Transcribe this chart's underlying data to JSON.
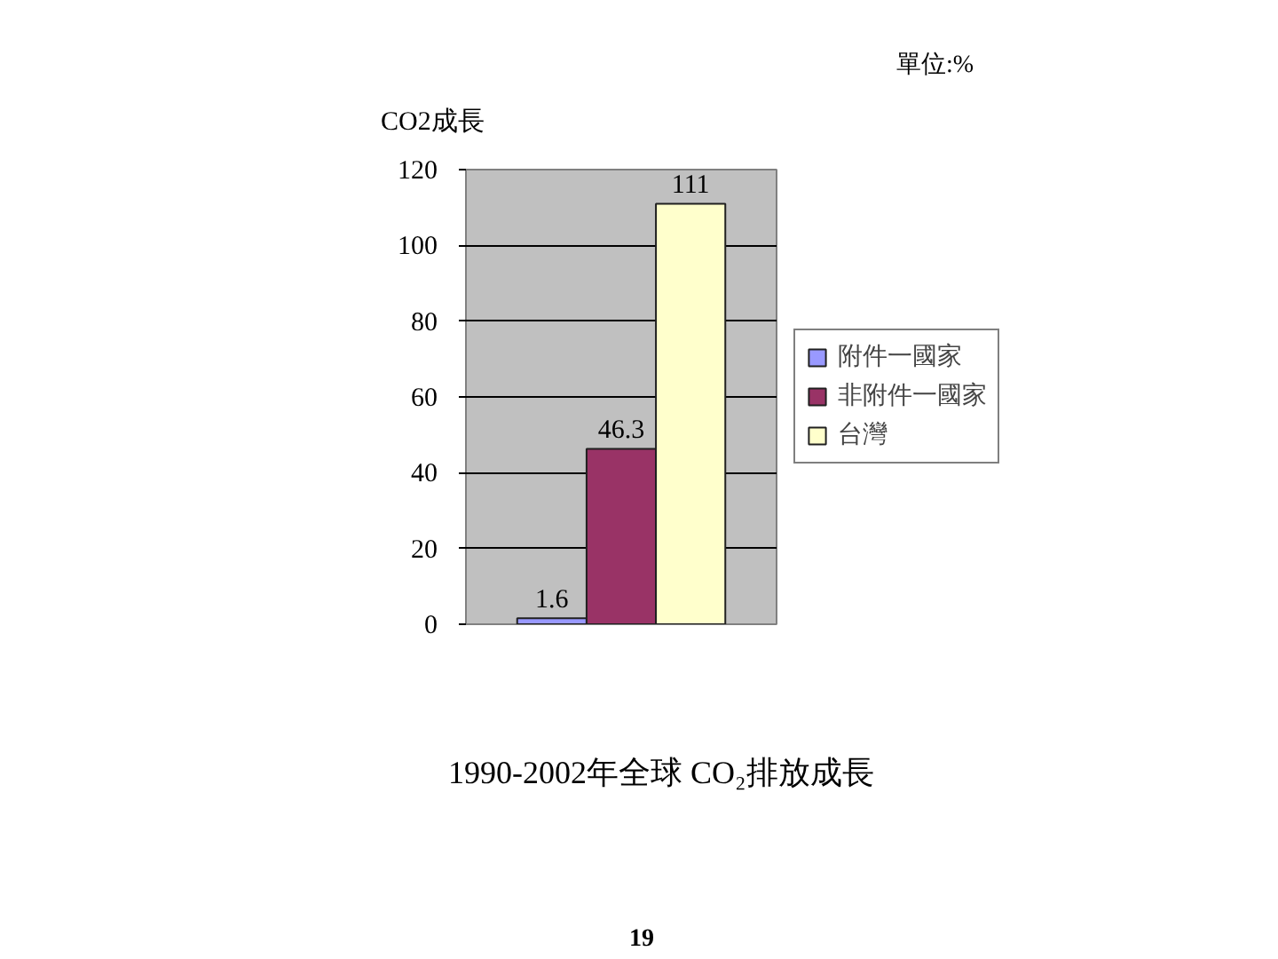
{
  "chart_data": {
    "type": "bar",
    "title": "1990-2002年全球 CO₂排放成長",
    "ylabel": "CO2成長",
    "annotations": [
      "單位:%",
      "19"
    ],
    "categories": [
      null
    ],
    "series": [
      {
        "name": "附件一國家",
        "color": "#9999ff",
        "values": [
          1.6
        ]
      },
      {
        "name": "非附件一國家",
        "color": "#993366",
        "values": [
          46.3
        ]
      },
      {
        "name": "台灣",
        "color": "#ffffcc",
        "values": [
          111
        ]
      }
    ],
    "ylim": [
      0,
      120
    ],
    "yticks": [
      0,
      20,
      40,
      60,
      80,
      100,
      120
    ],
    "grid": "y",
    "legend": "right",
    "data_labels": true,
    "tick_labels": "y"
  }
}
